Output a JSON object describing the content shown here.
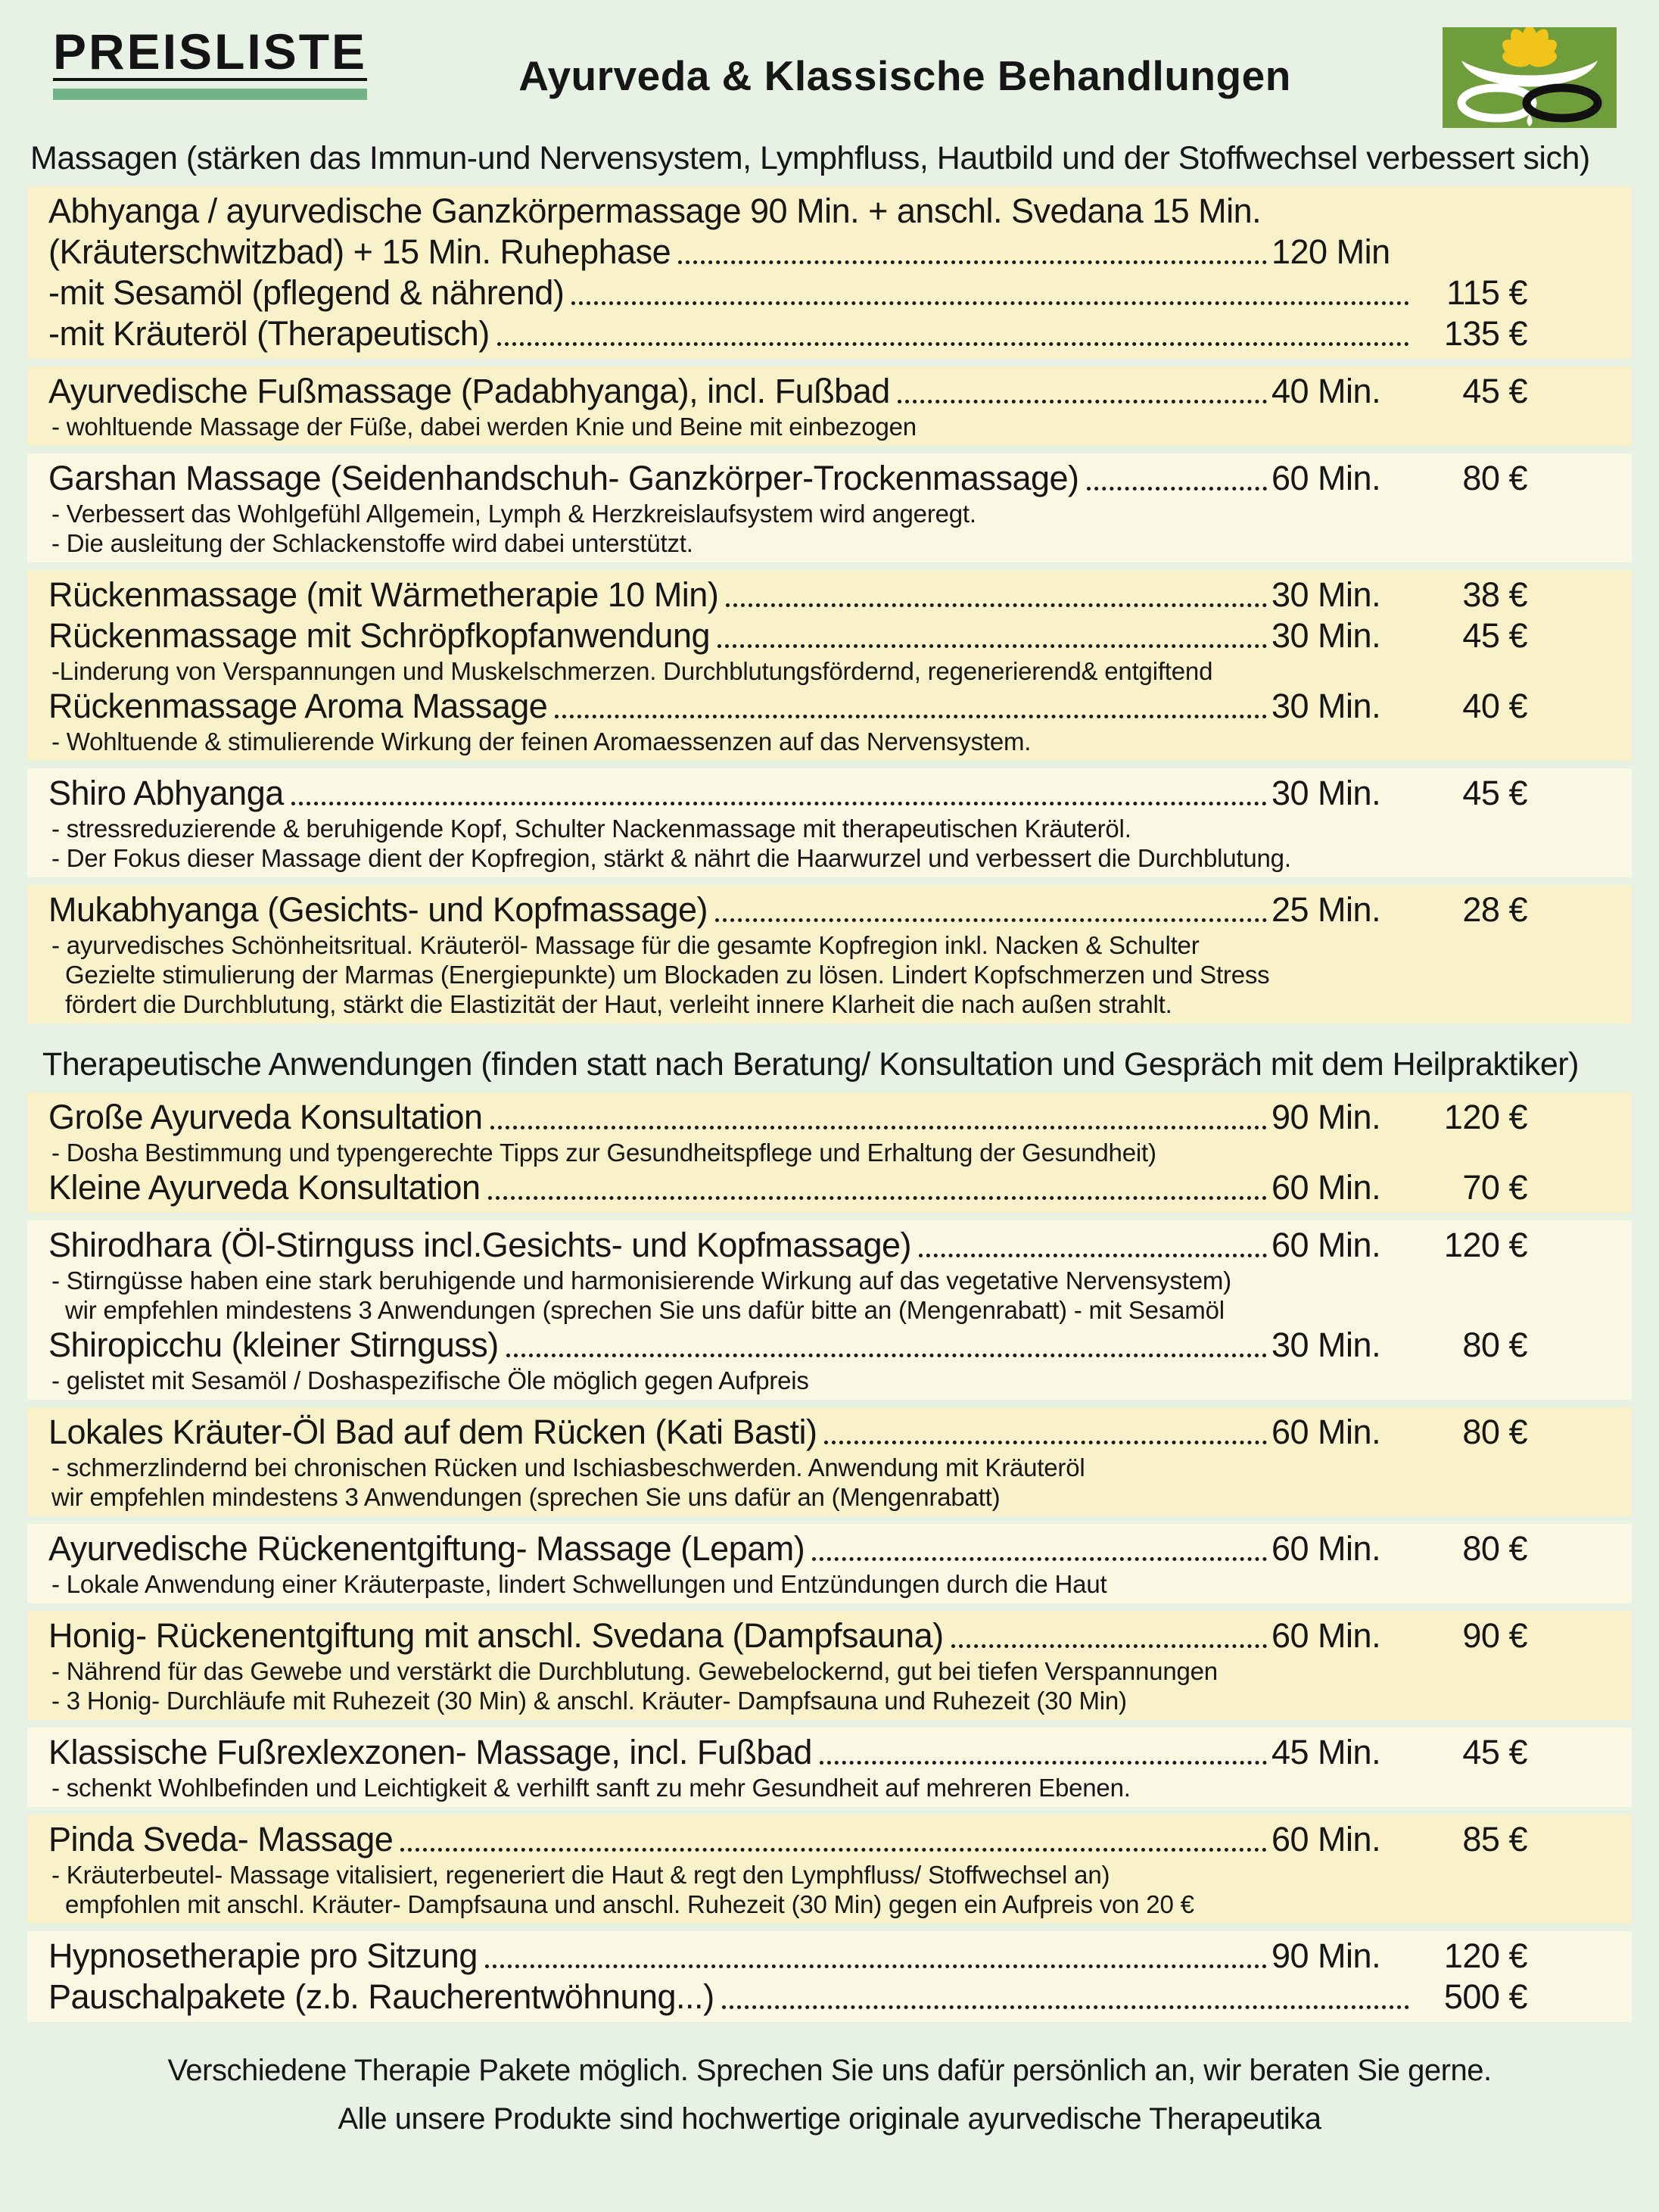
{
  "page": {
    "colors": {
      "background": "#e7f2e5",
      "block_yellow": "#f8f1c9",
      "block_pale": "#faf7e3",
      "badge_underline_green": "#72b387",
      "logo_green": "#6f9d3b",
      "lotus_yellow": "#f0c419",
      "text": "#161616"
    }
  },
  "header": {
    "badge": "PREISLISTE",
    "title": "Ayurveda & Klassische  Behandlungen",
    "logo_icon": "lotus-infinity-logo"
  },
  "sections": [
    {
      "heading": "Massagen (stärken das Immun-und Nervensystem, Lymphfluss, Hautbild und der Stoffwechsel verbessert sich)",
      "blocks": [
        {
          "tone": "yellow",
          "rows": [
            {
              "kind": "item",
              "title": "Abhyanga / ayurvedische Ganzkörpermassage 90 Min. + anschl. Svedana 15 Min.",
              "dots": false,
              "dur": null,
              "price": null
            },
            {
              "kind": "item",
              "title": "(Kräuterschwitzbad)  + 15 Min. Ruhephase",
              "dots": true,
              "dur": "120 Min",
              "price": null
            },
            {
              "kind": "item",
              "title": "-mit Sesamöl (pflegend & nährend)",
              "dots": true,
              "dur": null,
              "price": "115 €"
            },
            {
              "kind": "item",
              "title": "-mit Kräuteröl (Therapeutisch)",
              "dots": true,
              "dur": null,
              "price": "135 €"
            }
          ]
        },
        {
          "tone": "yellow",
          "rows": [
            {
              "kind": "item",
              "title": "Ayurvedische Fußmassage (Padabhyanga), incl. Fußbad",
              "dots": true,
              "dur": "40 Min.",
              "price": "45 €"
            },
            {
              "kind": "sub",
              "text": "- wohltuende Massage der Füße, dabei werden Knie und Beine mit einbezogen",
              "indent": false
            }
          ]
        },
        {
          "tone": "pale",
          "rows": [
            {
              "kind": "item",
              "title": "Garshan Massage  (Seidenhandschuh- Ganzkörper-Trockenmassage)",
              "dots": true,
              "dur": "60 Min.",
              "price": "80 €"
            },
            {
              "kind": "sub",
              "text": "- Verbessert das Wohlgefühl Allgemein, Lymph & Herzkreislaufsystem wird angeregt.",
              "indent": false
            },
            {
              "kind": "sub",
              "text": "- Die ausleitung der Schlackenstoffe wird dabei unterstützt.",
              "indent": false
            }
          ]
        },
        {
          "tone": "yellow",
          "rows": [
            {
              "kind": "item",
              "title": "Rückenmassage (mit Wärmetherapie 10 Min)",
              "dots": true,
              "dur": "30 Min.",
              "price": "38 €"
            },
            {
              "kind": "item",
              "title": "Rückenmassage mit Schröpfkopfanwendung ",
              "dots": true,
              "dur": "30 Min.",
              "price": "45 €"
            },
            {
              "kind": "sub",
              "text": "-Linderung von Verspannungen und Muskelschmerzen. Durchblutungsfördernd, regenerierend& entgiftend",
              "indent": false
            },
            {
              "kind": "item",
              "title": "Rückenmassage Aroma Massage",
              "dots": true,
              "dur": "30 Min.",
              "price": "40 €"
            },
            {
              "kind": "sub",
              "text": "- Wohltuende & stimulierende Wirkung der feinen Aromaessenzen auf das Nervensystem.",
              "indent": false
            }
          ]
        },
        {
          "tone": "pale",
          "rows": [
            {
              "kind": "item",
              "title": "Shiro Abhyanga",
              "dots": true,
              "dur": "30 Min.",
              "price": "45 €"
            },
            {
              "kind": "sub",
              "text": "- stressreduzierende & beruhigende Kopf, Schulter Nackenmassage mit therapeutischen Kräuteröl.",
              "indent": false
            },
            {
              "kind": "sub",
              "text": "- Der Fokus dieser Massage dient der Kopfregion, stärkt & nährt die Haarwurzel und verbessert die Durchblutung.",
              "indent": false
            }
          ]
        },
        {
          "tone": "yellow",
          "rows": [
            {
              "kind": "item",
              "title": "Mukabhyanga (Gesichts- und Kopfmassage)",
              "dots": true,
              "dur": "25 Min.",
              "price": "28 €"
            },
            {
              "kind": "sub",
              "text": "- ayurvedisches Schönheitsritual. Kräuteröl- Massage für die gesamte Kopfregion inkl. Nacken & Schulter",
              "indent": false
            },
            {
              "kind": "sub",
              "text": "Gezielte stimulierung der Marmas (Energiepunkte) um Blockaden zu lösen. Lindert  Kopfschmerzen und Stress",
              "indent": true
            },
            {
              "kind": "sub",
              "text": "fördert die Durchblutung, stärkt die Elastizität der Haut, verleiht innere Klarheit die nach außen strahlt.",
              "indent": true
            }
          ]
        }
      ]
    },
    {
      "heading": "Therapeutische Anwendungen (finden statt nach Beratung/ Konsultation und Gespräch mit dem Heilpraktiker)",
      "blocks": [
        {
          "tone": "yellow",
          "rows": [
            {
              "kind": "item",
              "title": "Große Ayurveda Konsultation",
              "dots": true,
              "dur": "90 Min.",
              "price": "120 €"
            },
            {
              "kind": "sub",
              "text": "- Dosha Bestimmung und typengerechte Tipps zur Gesundheitspflege und Erhaltung der Gesundheit)",
              "indent": false
            },
            {
              "kind": "item",
              "title": "Kleine Ayurveda Konsultation",
              "dots": true,
              "dur": "60 Min.",
              "price": "70 €"
            }
          ]
        },
        {
          "tone": "pale",
          "rows": [
            {
              "kind": "item",
              "title": "Shirodhara (Öl-Stirnguss incl.Gesichts- und Kopfmassage)",
              "dots": true,
              "dur": "60 Min.",
              "price": "120 €"
            },
            {
              "kind": "sub",
              "text": "- Stirngüsse haben eine stark beruhigende und harmonisierende Wirkung auf das vegetative Nervensystem)",
              "indent": false
            },
            {
              "kind": "sub",
              "text": "wir empfehlen mindestens 3 Anwendungen (sprechen Sie uns dafür bitte an (Mengenrabatt) - mit Sesamöl",
              "indent": true
            },
            {
              "kind": "item",
              "title": "Shiropicchu (kleiner Stirnguss)",
              "dots": true,
              "dur": "30 Min.",
              "price": "80 €"
            },
            {
              "kind": "sub",
              "text": "- gelistet mit  Sesamöl / Doshaspezifische Öle möglich gegen Aufpreis",
              "indent": false
            }
          ]
        },
        {
          "tone": "yellow",
          "rows": [
            {
              "kind": "item",
              "title": "Lokales Kräuter-Öl Bad auf dem Rücken (Kati Basti)",
              "dots": true,
              "dur": "60 Min.",
              "price": "80 €"
            },
            {
              "kind": "sub",
              "text": "- schmerzlindernd bei chronischen Rücken und Ischiasbeschwerden. Anwendung mit Kräuteröl",
              "indent": false
            },
            {
              "kind": "sub",
              "text": "wir empfehlen mindestens 3 Anwendungen (sprechen Sie uns dafür an (Mengenrabatt)",
              "indent": false
            }
          ]
        },
        {
          "tone": "pale",
          "rows": [
            {
              "kind": "item",
              "title": "Ayurvedische Rückenentgiftung- Massage (Lepam)",
              "dots": true,
              "dur": "60 Min.",
              "price": "80 €"
            },
            {
              "kind": "sub",
              "text": "- Lokale Anwendung einer Kräuterpaste, lindert Schwellungen und Entzündungen durch die Haut",
              "indent": false
            }
          ]
        },
        {
          "tone": "yellow",
          "rows": [
            {
              "kind": "item",
              "title": "Honig- Rückenentgiftung mit anschl. Svedana (Dampfsauna)",
              "dots": true,
              "dur": "60 Min.",
              "price": "90 €"
            },
            {
              "kind": "sub",
              "text": "- Nährend für das Gewebe und verstärkt die Durchblutung. Gewebelockernd, gut bei tiefen Verspannungen",
              "indent": false
            },
            {
              "kind": "sub",
              "text": "- 3  Honig- Durchläufe mit Ruhezeit (30 Min) & anschl. Kräuter- Dampfsauna und Ruhezeit (30 Min)",
              "indent": false
            }
          ]
        },
        {
          "tone": "pale",
          "rows": [
            {
              "kind": "item",
              "title": "Klassische Fußrexlexzonen- Massage, incl. Fußbad",
              "dots": true,
              "dur": "45 Min.",
              "price": "45 €"
            },
            {
              "kind": "sub",
              "text": "- schenkt Wohlbefinden und Leichtigkeit & verhilft sanft zu mehr Gesundheit auf mehreren Ebenen.",
              "indent": false
            }
          ]
        },
        {
          "tone": "yellow",
          "rows": [
            {
              "kind": "item",
              "title": "Pinda Sveda- Massage",
              "dots": true,
              "dur": "60 Min.",
              "price": "85 €"
            },
            {
              "kind": "sub",
              "text": "- Kräuterbeutel- Massage vitalisiert, regeneriert die Haut & regt den Lymphfluss/ Stoffwechsel an)",
              "indent": false
            },
            {
              "kind": "sub",
              "text": "empfohlen mit anschl. Kräuter- Dampfsauna und anschl. Ruhezeit (30 Min) gegen ein Aufpreis von 20 €",
              "indent": true
            }
          ]
        },
        {
          "tone": "pale",
          "rows": [
            {
              "kind": "item",
              "title": "Hypnosetherapie pro Sitzung",
              "dots": true,
              "dur": "90 Min.",
              "price": "120 €"
            },
            {
              "kind": "item",
              "title": "Pauschalpakete (z.b. Raucherentwöhnung...)",
              "dots": true,
              "dur": null,
              "price": "500 €"
            }
          ]
        }
      ]
    }
  ],
  "footer": {
    "line1": "Verschiedene Therapie Pakete möglich. Sprechen Sie uns dafür persönlich an, wir beraten Sie gerne.",
    "line2": "Alle unsere Produkte sind hochwertige originale ayurvedische Therapeutika"
  }
}
